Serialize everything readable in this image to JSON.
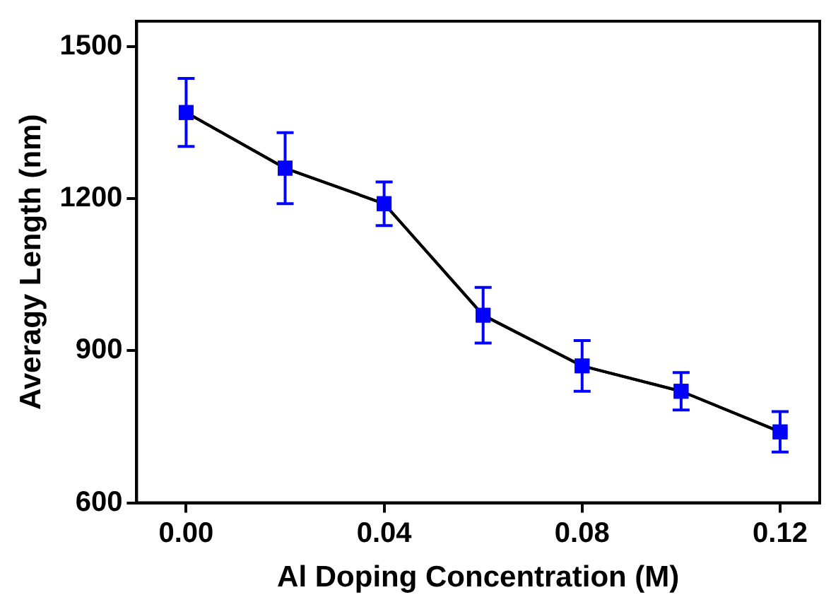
{
  "chart_data": {
    "type": "line",
    "xlabel": "Al Doping Concentration (M)",
    "ylabel": "Averagy Length (nm)",
    "x": [
      0,
      0.02,
      0.04,
      0.06,
      0.08,
      0.1,
      0.12
    ],
    "series": [
      {
        "color": "#0000ff",
        "values": [
          1370,
          1260,
          1190,
          970,
          870,
          820,
          740
        ],
        "errors": [
          67,
          70,
          43,
          55,
          50,
          37,
          40
        ]
      }
    ],
    "xlim": [
      -0.01,
      0.128
    ],
    "xticks": [
      {
        "value": 0,
        "label": "0.00"
      },
      {
        "value": 0.04,
        "label": "0.04"
      },
      {
        "value": 0.08,
        "label": "0.08"
      },
      {
        "value": 0.12,
        "label": "0.12"
      }
    ],
    "ylim": [
      600,
      1550
    ],
    "yticks": [
      600,
      900,
      1200,
      1500
    ],
    "grid": false,
    "legend": false,
    "marker": "square",
    "line_style": "solid"
  }
}
